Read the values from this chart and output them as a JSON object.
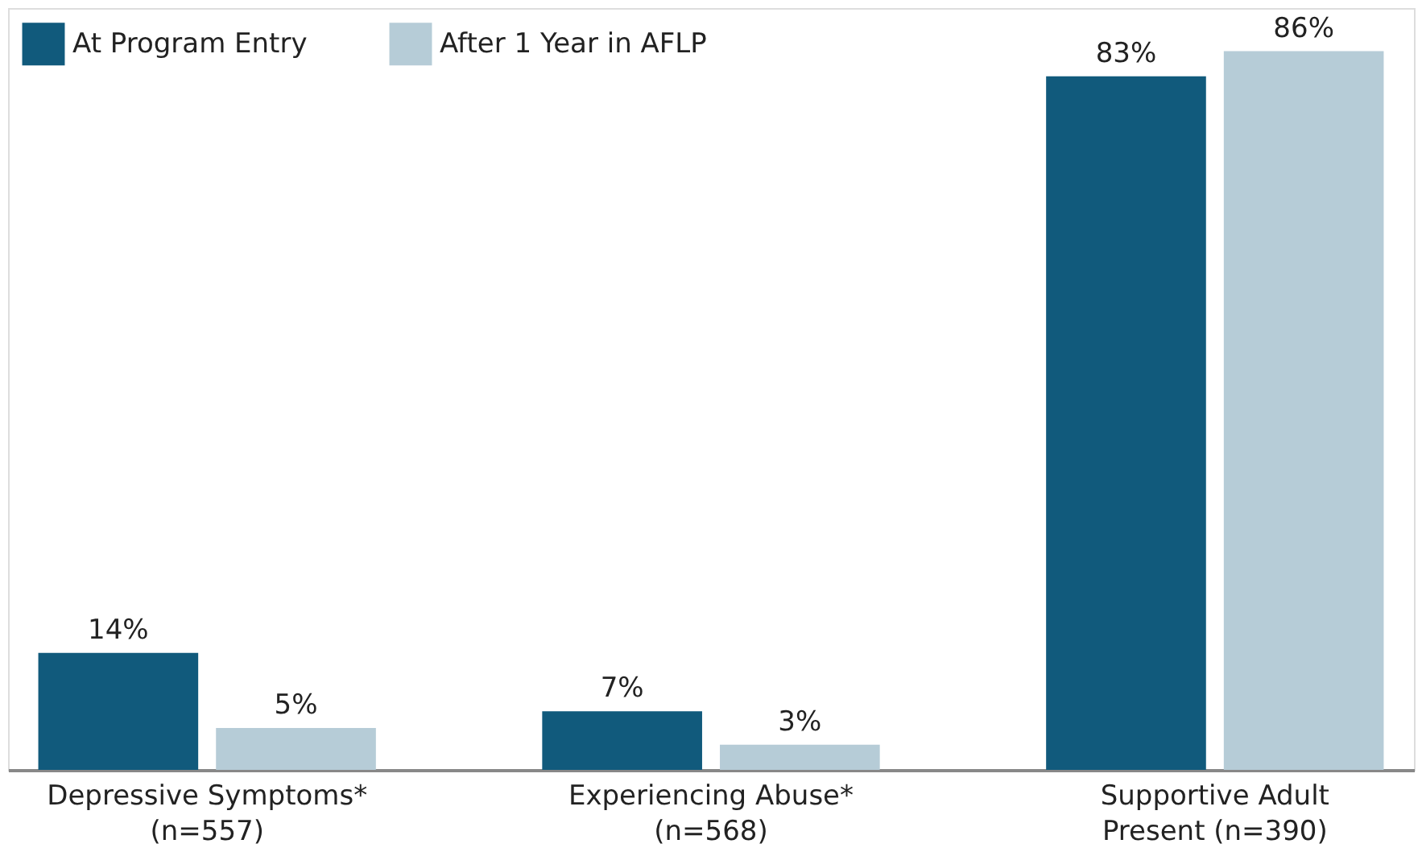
{
  "chart_data": {
    "type": "bar",
    "categories": [
      "Depressive Symptoms*\n(n=557)",
      "Experiencing Abuse*\n(n=568)",
      "Supportive Adult\nPresent (n=390)"
    ],
    "series": [
      {
        "name": "At Program Entry",
        "color": "#115a7c",
        "values": [
          14,
          7,
          83
        ],
        "value_labels": [
          "14%",
          "7%",
          "83%"
        ]
      },
      {
        "name": "After 1 Year in AFLP",
        "color": "#b6ccd7",
        "values": [
          5,
          3,
          86
        ],
        "value_labels": [
          "5%",
          "3%",
          "86%"
        ]
      }
    ],
    "legend": "top left",
    "grid": false,
    "tick_labels": "x"
  }
}
